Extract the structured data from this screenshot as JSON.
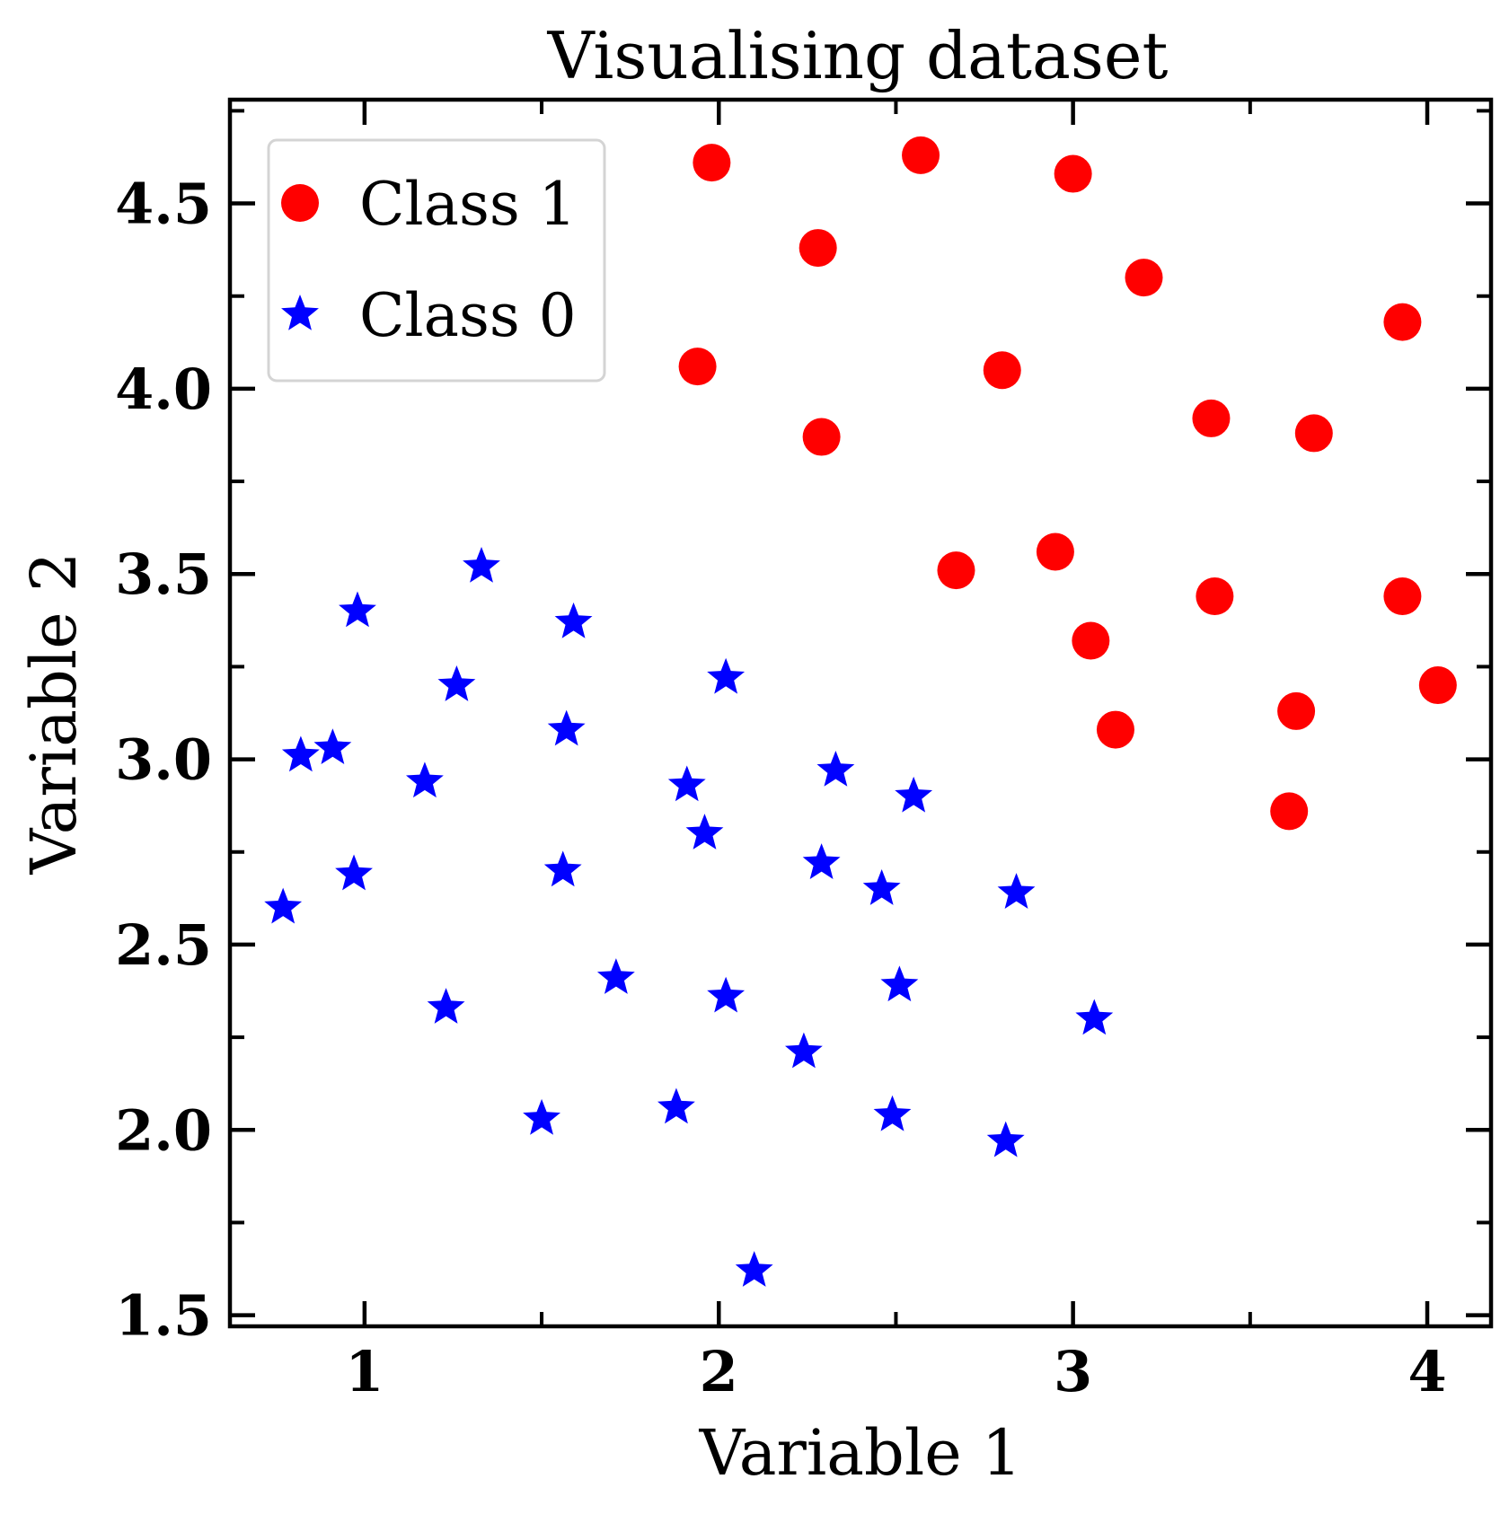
{
  "chart_data": {
    "type": "scatter",
    "title": "Visualising dataset",
    "xlabel": "Variable 1",
    "ylabel": "Variable 2",
    "xlim": [
      0.62,
      4.18
    ],
    "ylim": [
      1.47,
      4.78
    ],
    "x_ticks": [
      1,
      2,
      3,
      4
    ],
    "x_tick_labels": [
      "1",
      "2",
      "3",
      "4"
    ],
    "x_minor_ticks": [
      1.5,
      2.5,
      3.5
    ],
    "y_ticks": [
      1.5,
      2.0,
      2.5,
      3.0,
      3.5,
      4.0,
      4.5
    ],
    "y_tick_labels": [
      "1.5",
      "2.0",
      "2.5",
      "3.0",
      "3.5",
      "4.0",
      "4.5"
    ],
    "y_minor_ticks": [
      1.75,
      2.25,
      2.75,
      3.25,
      3.75,
      4.25,
      4.75
    ],
    "grid": false,
    "legend_position": "top-left",
    "series": [
      {
        "name": "Class 1",
        "marker": "circle",
        "color": "#ff0000",
        "points": [
          [
            1.98,
            4.61
          ],
          [
            2.57,
            4.63
          ],
          [
            3.0,
            4.58
          ],
          [
            2.28,
            4.38
          ],
          [
            3.2,
            4.3
          ],
          [
            3.93,
            4.18
          ],
          [
            1.94,
            4.06
          ],
          [
            2.8,
            4.05
          ],
          [
            2.29,
            3.87
          ],
          [
            3.39,
            3.92
          ],
          [
            3.68,
            3.88
          ],
          [
            2.67,
            3.51
          ],
          [
            2.95,
            3.56
          ],
          [
            3.4,
            3.44
          ],
          [
            3.93,
            3.44
          ],
          [
            3.05,
            3.32
          ],
          [
            4.03,
            3.2
          ],
          [
            3.12,
            3.08
          ],
          [
            3.63,
            3.13
          ],
          [
            3.61,
            2.86
          ]
        ]
      },
      {
        "name": "Class 0",
        "marker": "star",
        "color": "#0000ff",
        "points": [
          [
            1.33,
            3.52
          ],
          [
            0.98,
            3.4
          ],
          [
            1.59,
            3.37
          ],
          [
            1.26,
            3.2
          ],
          [
            2.02,
            3.22
          ],
          [
            1.57,
            3.08
          ],
          [
            0.82,
            3.01
          ],
          [
            0.91,
            3.03
          ],
          [
            1.17,
            2.94
          ],
          [
            2.33,
            2.97
          ],
          [
            1.91,
            2.93
          ],
          [
            2.55,
            2.9
          ],
          [
            1.96,
            2.8
          ],
          [
            0.97,
            2.69
          ],
          [
            1.56,
            2.7
          ],
          [
            2.29,
            2.72
          ],
          [
            2.46,
            2.65
          ],
          [
            2.84,
            2.64
          ],
          [
            0.77,
            2.6
          ],
          [
            1.71,
            2.41
          ],
          [
            2.51,
            2.39
          ],
          [
            2.02,
            2.36
          ],
          [
            1.23,
            2.33
          ],
          [
            3.06,
            2.3
          ],
          [
            2.24,
            2.21
          ],
          [
            1.88,
            2.06
          ],
          [
            1.5,
            2.03
          ],
          [
            2.49,
            2.04
          ],
          [
            2.81,
            1.97
          ],
          [
            2.1,
            1.62
          ]
        ]
      }
    ]
  }
}
